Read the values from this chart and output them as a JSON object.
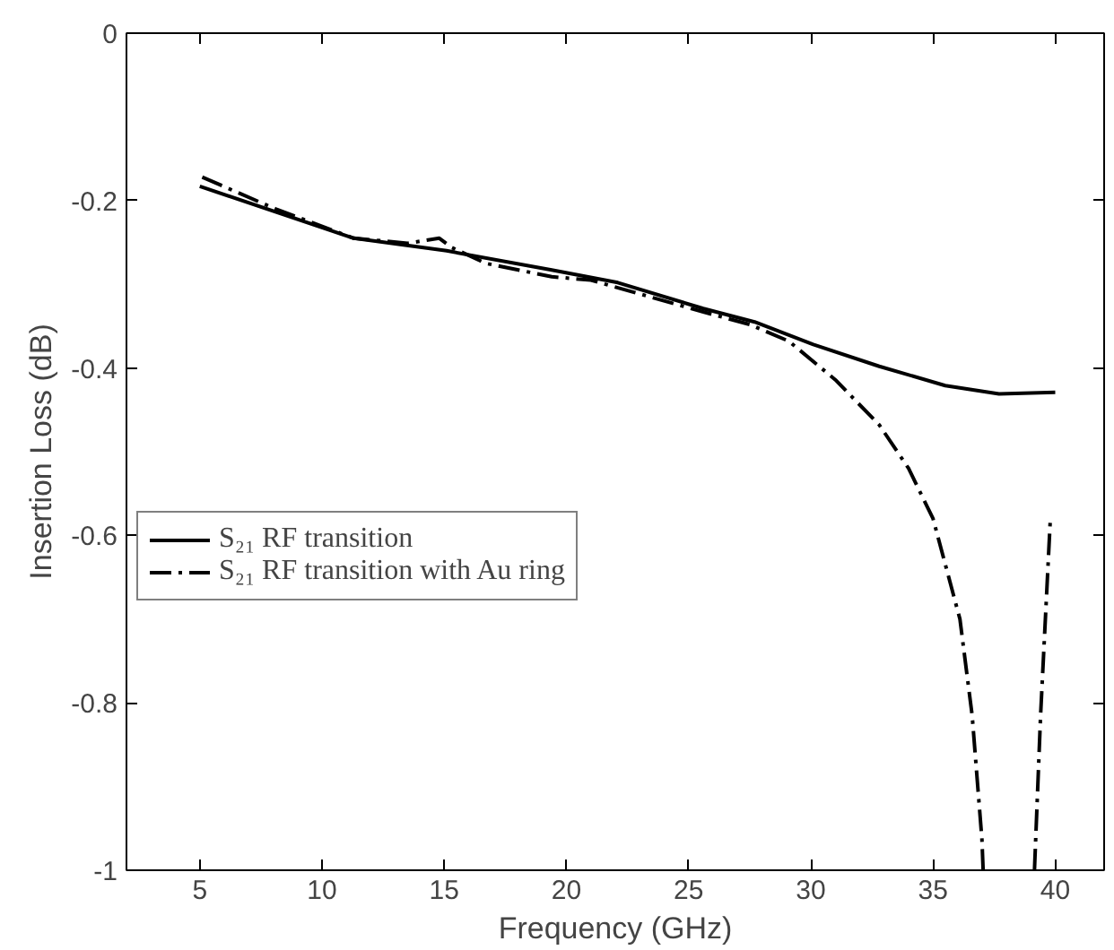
{
  "chart_data": {
    "type": "line",
    "xlabel": "Frequency (GHz)",
    "ylabel": "Insertion Loss (dB)",
    "xlim": [
      2,
      42
    ],
    "ylim": [
      -1,
      0
    ],
    "xticks": [
      5,
      10,
      15,
      20,
      25,
      30,
      35,
      40
    ],
    "yticks": [
      {
        "value": -1,
        "label": "-1"
      },
      -0.8,
      -0.6,
      -0.4,
      -0.2,
      0
    ],
    "grid": false,
    "legend": "left",
    "marker": "none",
    "series": [
      {
        "name": "S₂₁ RF transition",
        "color": "#000000",
        "line_style": "solid",
        "x": [
          5,
          11.3,
          15.1,
          19.4,
          22.1,
          25.6,
          27.7,
          30.1,
          32.8,
          35.5,
          37.7,
          40
        ],
        "values": [
          -0.183,
          -0.245,
          -0.26,
          -0.283,
          -0.298,
          -0.329,
          -0.345,
          -0.372,
          -0.398,
          -0.421,
          -0.431,
          -0.429
        ]
      },
      {
        "name": "S₂₁ RF transition with Au ring",
        "color": "#000000",
        "line_style": "dashdot",
        "x": [
          5.1,
          8.1,
          11.3,
          13.5,
          14.8,
          15.3,
          16.7,
          19.4,
          21,
          25.6,
          27.5,
          29.1,
          31,
          32.8,
          34,
          35,
          36.1,
          36.6,
          37,
          37.05,
          38.2,
          39.15,
          39.2,
          39.4,
          39.8
        ],
        "values": [
          -0.172,
          -0.21,
          -0.245,
          -0.251,
          -0.245,
          -0.256,
          -0.275,
          -0.291,
          -0.295,
          -0.333,
          -0.348,
          -0.368,
          -0.414,
          -0.468,
          -0.52,
          -0.58,
          -0.7,
          -0.815,
          -0.963,
          -1,
          null,
          -1,
          -0.963,
          -0.815,
          -0.58
        ]
      }
    ]
  }
}
